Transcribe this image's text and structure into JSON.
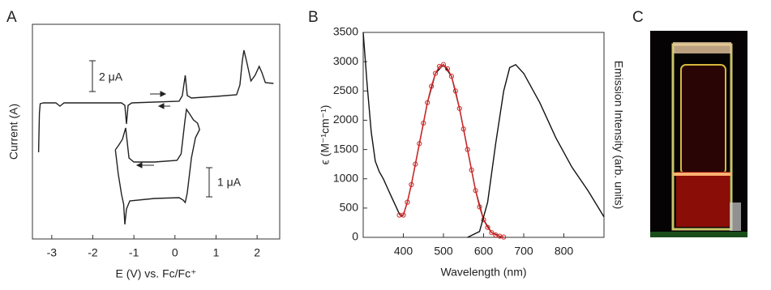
{
  "chart_data": [
    {
      "type": "line",
      "panel": "A",
      "xlabel": "E (V) vs. Fc/Fc⁺",
      "ylabel": "Current (A)",
      "xlim": [
        -3.47,
        2.55
      ],
      "xticks": [
        -3,
        -2,
        -1,
        0,
        1,
        2
      ],
      "ylim": [
        0,
        265
      ],
      "annotations": [
        "2 μA",
        "1 μA"
      ],
      "series": [
        {
          "color": "#222222",
          "x": [
            -3.32,
            -3.3,
            -3.28,
            -3.2,
            -2.9,
            -2.8,
            -2.7,
            -2.5,
            -1.3,
            -1.22,
            -1.18,
            -1.14,
            -1.05,
            0.1,
            0.18,
            0.25,
            0.3,
            0.4,
            1.0,
            1.5,
            1.58,
            1.64,
            1.68,
            1.74,
            1.85,
            1.95,
            2.05,
            2.12,
            2.2,
            2.4
          ],
          "values": [
            107,
            155,
            167,
            168,
            168,
            164,
            168,
            168,
            168,
            165,
            142,
            165,
            168,
            170,
            177,
            202,
            177,
            174,
            176,
            178,
            190,
            220,
            233,
            220,
            195,
            202,
            213,
            205,
            193,
            192
          ]
        },
        {
          "color": "#222222",
          "x": [
            -1.45,
            -1.38,
            -1.3,
            -1.25,
            -1.22,
            -1.18,
            -1.1,
            -0.5,
            0.1,
            0.2,
            0.25,
            0.3,
            0.4,
            0.5,
            0.6,
            0.55,
            0.45,
            0.35,
            0.28,
            0.24,
            0.15,
            0.05,
            -0.5,
            -1.0,
            -1.12,
            -1.2,
            -1.28,
            -1.38,
            -1.45
          ],
          "values": [
            110,
            80,
            55,
            43,
            18,
            37,
            47,
            50,
            51,
            48,
            45,
            57,
            100,
            125,
            135,
            143,
            147,
            155,
            160,
            145,
            105,
            97,
            95,
            95,
            100,
            137,
            123,
            115,
            110
          ]
        }
      ]
    },
    {
      "type": "line",
      "panel": "B",
      "xlabel": "Wavelength (nm)",
      "ylabel": "ϵ (M⁻¹cm⁻¹)",
      "y2label": "Emission Intensity (arb. units)",
      "xlim": [
        300,
        900
      ],
      "xticks": [
        400,
        500,
        600,
        700,
        800
      ],
      "ylim": [
        0,
        3500
      ],
      "yticks": [
        0,
        500,
        1000,
        1500,
        2000,
        2500,
        3000,
        3500
      ],
      "series": [
        {
          "color": "#111111",
          "x": [
            300,
            310,
            320,
            330,
            340,
            350,
            360,
            370,
            380,
            390,
            395,
            400,
            410,
            420,
            440,
            460,
            480,
            500,
            520,
            540,
            560,
            580,
            600,
            620,
            640,
            650
          ],
          "values": [
            3500,
            2600,
            1800,
            1300,
            1120,
            1000,
            850,
            700,
            550,
            400,
            360,
            380,
            600,
            900,
            1600,
            2300,
            2800,
            2950,
            2750,
            2200,
            1500,
            800,
            300,
            80,
            20,
            0
          ]
        },
        {
          "color": "#d62728",
          "marker": "circle",
          "x": [
            390,
            400,
            410,
            420,
            430,
            440,
            450,
            460,
            470,
            480,
            490,
            500,
            510,
            520,
            530,
            540,
            550,
            560,
            570,
            580,
            590,
            600,
            610,
            620,
            630,
            640,
            650
          ],
          "values": [
            380,
            380,
            600,
            900,
            1250,
            1600,
            1950,
            2300,
            2580,
            2800,
            2920,
            2950,
            2880,
            2750,
            2500,
            2200,
            1850,
            1500,
            1150,
            800,
            520,
            300,
            170,
            80,
            40,
            20,
            5
          ]
        },
        {
          "color": "#111111",
          "x": [
            560,
            590,
            610,
            630,
            650,
            665,
            680,
            700,
            740,
            780,
            820,
            860,
            900
          ],
          "values": [
            0,
            100,
            600,
            1600,
            2500,
            2900,
            2950,
            2800,
            2300,
            1700,
            1200,
            800,
            350
          ]
        }
      ]
    }
  ],
  "photo_panel": {
    "label": "C"
  }
}
